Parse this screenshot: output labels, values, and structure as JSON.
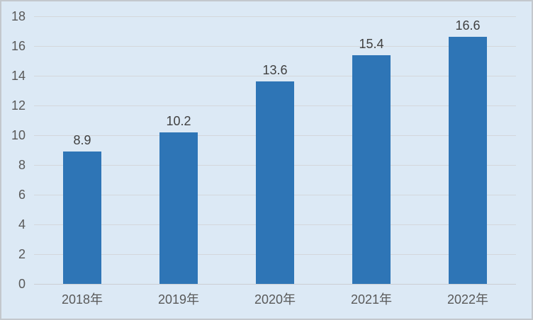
{
  "chart_data": {
    "type": "bar",
    "title": "",
    "xlabel": "",
    "ylabel": "",
    "categories": [
      "2018年",
      "2019年",
      "2020年",
      "2021年",
      "2022年"
    ],
    "values": [
      8.9,
      10.2,
      13.6,
      15.4,
      16.6
    ],
    "data_labels": [
      "8.9",
      "10.2",
      "13.6",
      "15.4",
      "16.6"
    ],
    "ylim": [
      0,
      18
    ],
    "ytick_step": 2,
    "yticks": [
      "0",
      "2",
      "4",
      "6",
      "8",
      "10",
      "12",
      "14",
      "16",
      "18"
    ],
    "grid": true,
    "legend": false,
    "colors": {
      "bar": "#2e75b6",
      "background": "#dce9f5",
      "frame_border": "#c3c8cd",
      "gridline": "#d4d7db",
      "axis_line": "#cbced3",
      "tick_label": "#595959",
      "x_label": "#595959",
      "data_label": "#404040"
    }
  }
}
